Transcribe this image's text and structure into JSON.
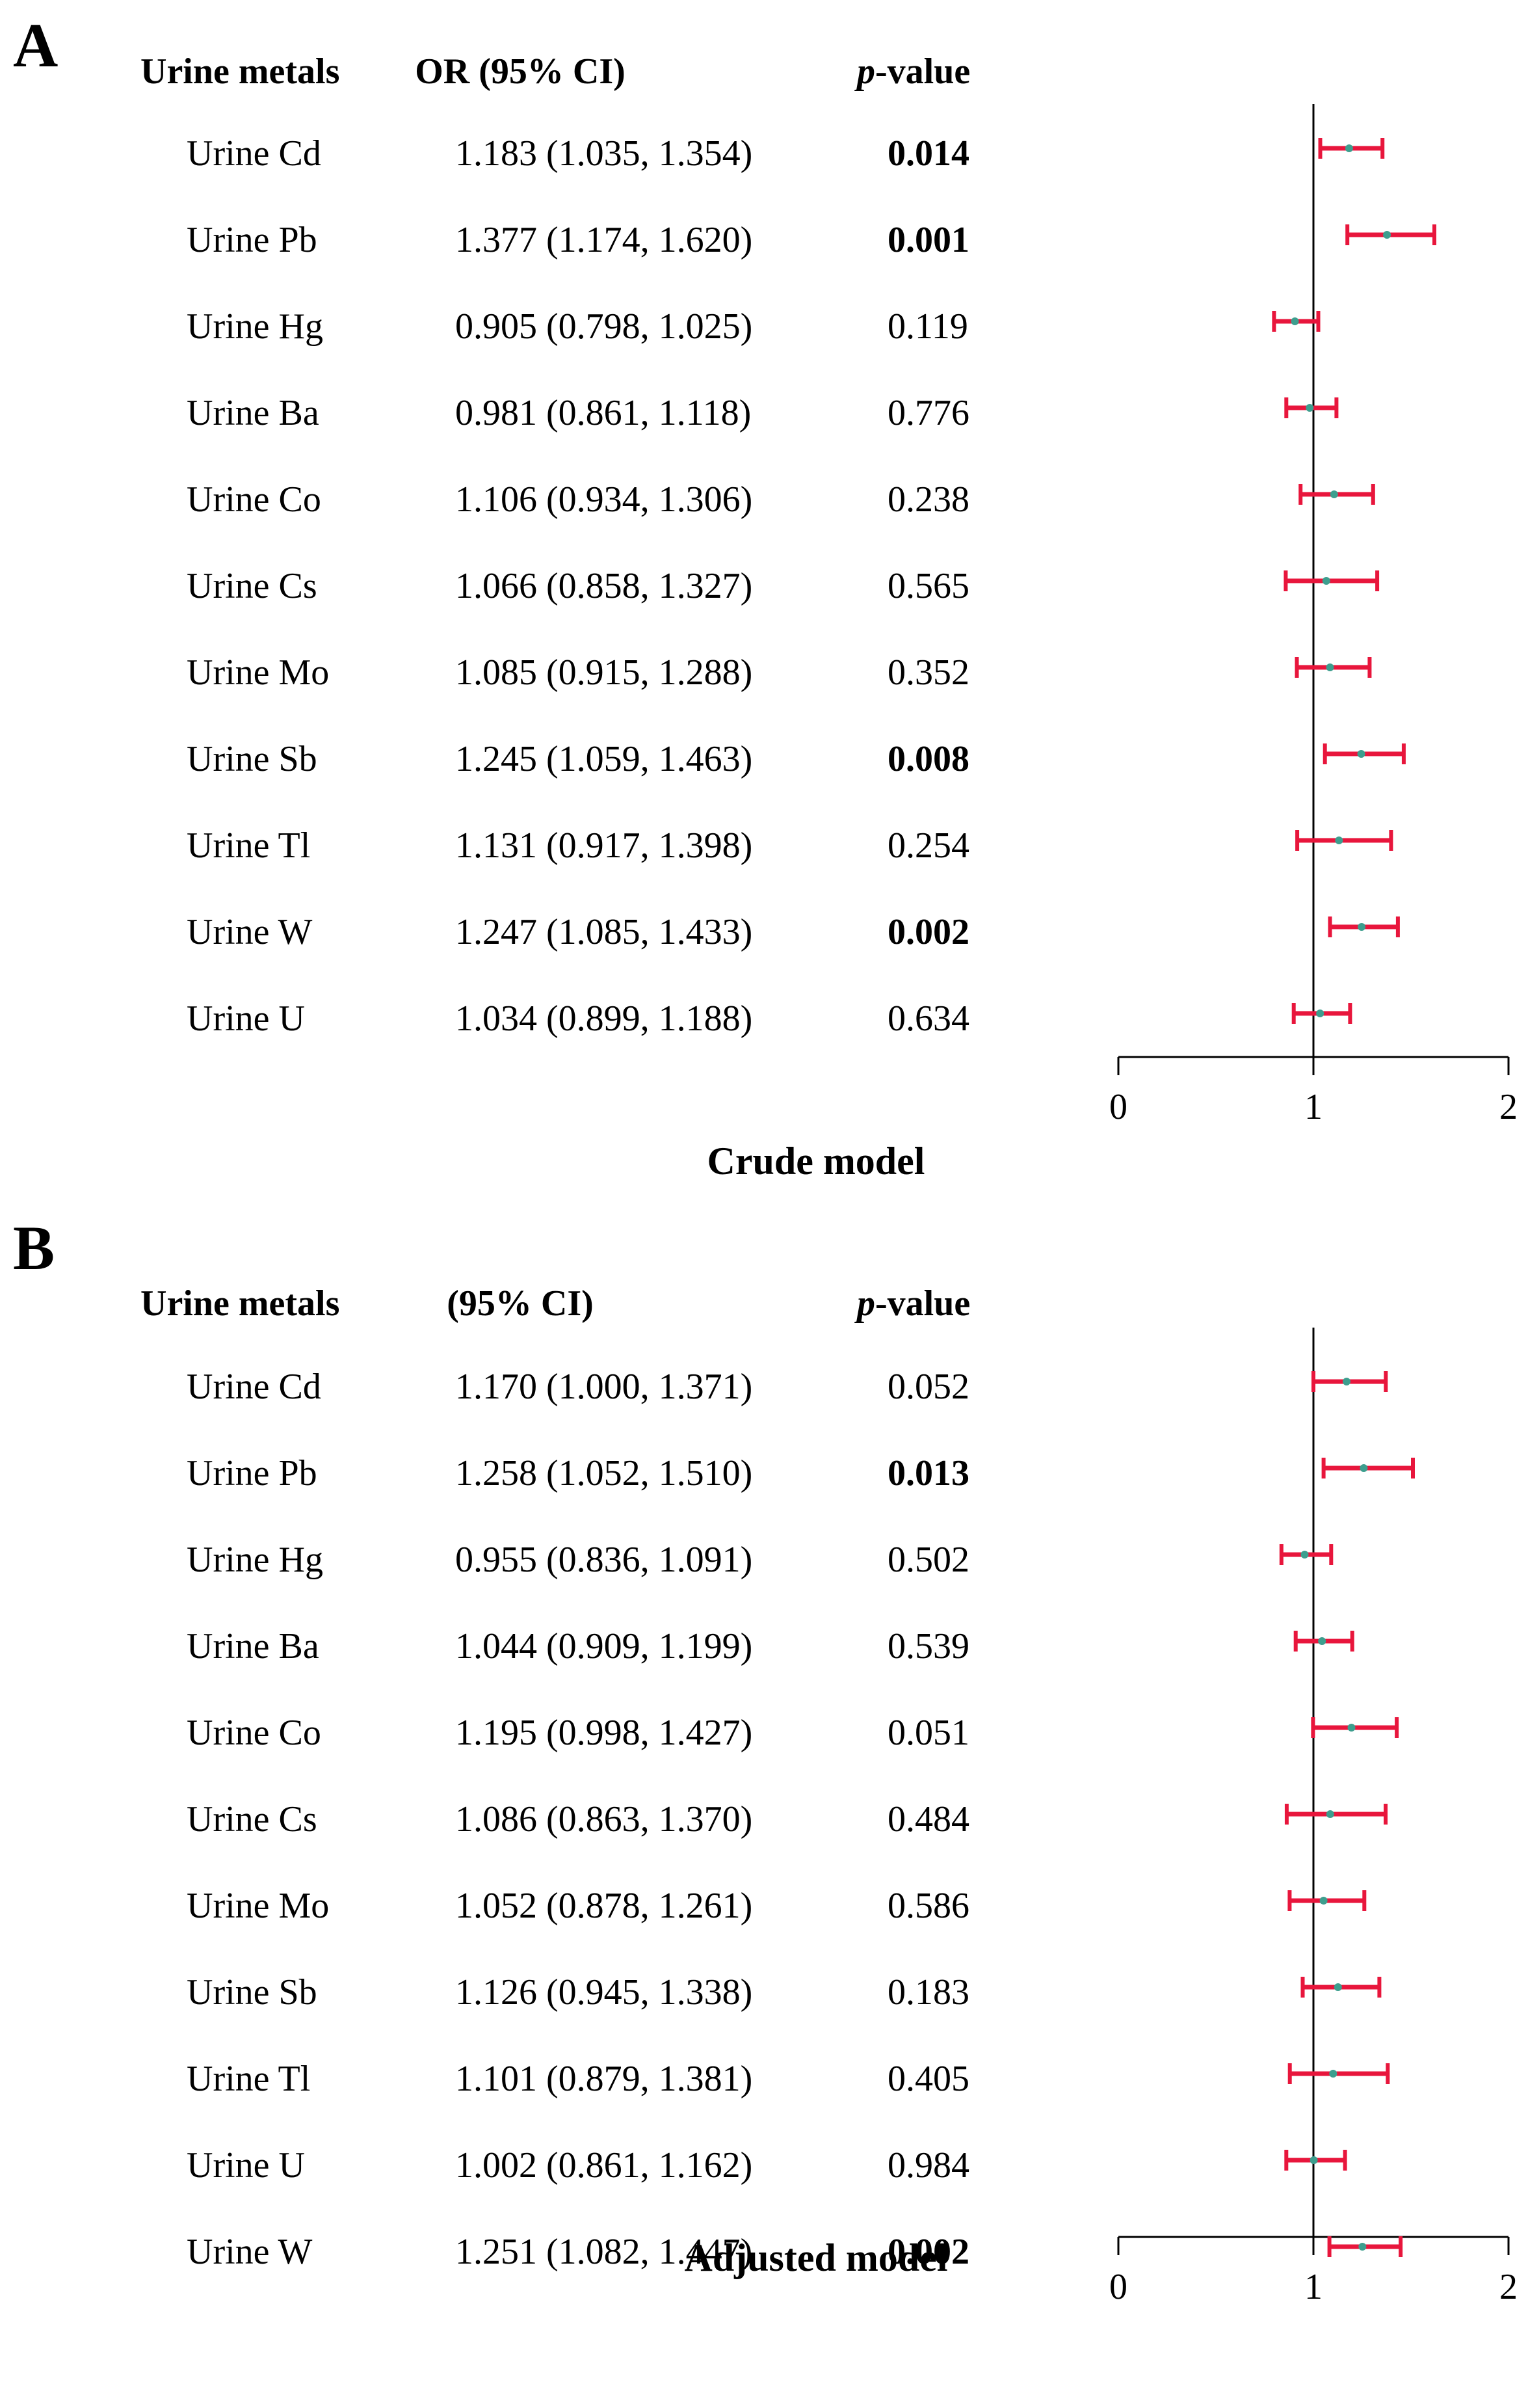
{
  "chart_data": [
    {
      "type": "forest",
      "panel": "A",
      "title": "Crude model",
      "headers": {
        "metal": "Urine metals",
        "or": "OR (95% CI)",
        "p_prefix": "p",
        "p_suffix": "-value"
      },
      "reference_line": 1,
      "xlim": [
        0,
        2
      ],
      "xticks": [
        "0",
        "1",
        "2"
      ],
      "rows": [
        {
          "metal": "Urine Cd",
          "or_text": "1.183 (1.035, 1.354)",
          "or": 1.183,
          "lower": 1.035,
          "upper": 1.354,
          "p": "0.014",
          "sig": true
        },
        {
          "metal": "Urine Pb",
          "or_text": "1.377 (1.174, 1.620)",
          "or": 1.377,
          "lower": 1.174,
          "upper": 1.62,
          "p": "0.001",
          "sig": true
        },
        {
          "metal": "Urine Hg",
          "or_text": "0.905 (0.798, 1.025)",
          "or": 0.905,
          "lower": 0.798,
          "upper": 1.025,
          "p": "0.119",
          "sig": false
        },
        {
          "metal": "Urine Ba",
          "or_text": "0.981 (0.861, 1.118)",
          "or": 0.981,
          "lower": 0.861,
          "upper": 1.118,
          "p": "0.776",
          "sig": false
        },
        {
          "metal": "Urine Co",
          "or_text": "1.106 (0.934, 1.306)",
          "or": 1.106,
          "lower": 0.934,
          "upper": 1.306,
          "p": "0.238",
          "sig": false
        },
        {
          "metal": "Urine Cs",
          "or_text": "1.066 (0.858, 1.327)",
          "or": 1.066,
          "lower": 0.858,
          "upper": 1.327,
          "p": "0.565",
          "sig": false
        },
        {
          "metal": "Urine Mo",
          "or_text": "1.085 (0.915, 1.288)",
          "or": 1.085,
          "lower": 0.915,
          "upper": 1.288,
          "p": "0.352",
          "sig": false
        },
        {
          "metal": "Urine Sb",
          "or_text": "1.245 (1.059, 1.463)",
          "or": 1.245,
          "lower": 1.059,
          "upper": 1.463,
          "p": "0.008",
          "sig": true
        },
        {
          "metal": "Urine Tl",
          "or_text": "1.131 (0.917, 1.398)",
          "or": 1.131,
          "lower": 0.917,
          "upper": 1.398,
          "p": "0.254",
          "sig": false
        },
        {
          "metal": "Urine W",
          "or_text": "1.247 (1.085, 1.433)",
          "or": 1.247,
          "lower": 1.085,
          "upper": 1.433,
          "p": "0.002",
          "sig": true
        },
        {
          "metal": "Urine U",
          "or_text": "1.034 (0.899, 1.188)",
          "or": 1.034,
          "lower": 0.899,
          "upper": 1.188,
          "p": "0.634",
          "sig": false
        }
      ]
    },
    {
      "type": "forest",
      "panel": "B",
      "title": "Adjusted model",
      "headers": {
        "metal": "Urine metals",
        "or": "(95% CI)",
        "p_prefix": "p",
        "p_suffix": "-value"
      },
      "reference_line": 1,
      "xlim": [
        0,
        2
      ],
      "xticks": [
        "0",
        "1",
        "2"
      ],
      "rows": [
        {
          "metal": "Urine Cd",
          "or_text": "1.170 (1.000, 1.371)",
          "or": 1.17,
          "lower": 1.0,
          "upper": 1.371,
          "p": "0.052",
          "sig": false
        },
        {
          "metal": "Urine Pb",
          "or_text": "1.258 (1.052, 1.510)",
          "or": 1.258,
          "lower": 1.052,
          "upper": 1.51,
          "p": "0.013",
          "sig": true
        },
        {
          "metal": "Urine Hg",
          "or_text": "0.955 (0.836, 1.091)",
          "or": 0.955,
          "lower": 0.836,
          "upper": 1.091,
          "p": "0.502",
          "sig": false
        },
        {
          "metal": "Urine Ba",
          "or_text": "1.044 (0.909, 1.199)",
          "or": 1.044,
          "lower": 0.909,
          "upper": 1.199,
          "p": "0.539",
          "sig": false
        },
        {
          "metal": "Urine Co",
          "or_text": "1.195 (0.998, 1.427)",
          "or": 1.195,
          "lower": 0.998,
          "upper": 1.427,
          "p": "0.051",
          "sig": false
        },
        {
          "metal": "Urine Cs",
          "or_text": "1.086 (0.863, 1.370)",
          "or": 1.086,
          "lower": 0.863,
          "upper": 1.37,
          "p": "0.484",
          "sig": false
        },
        {
          "metal": "Urine Mo",
          "or_text": "1.052 (0.878, 1.261)",
          "or": 1.052,
          "lower": 0.878,
          "upper": 1.261,
          "p": "0.586",
          "sig": false
        },
        {
          "metal": "Urine Sb",
          "or_text": "1.126 (0.945, 1.338)",
          "or": 1.126,
          "lower": 0.945,
          "upper": 1.338,
          "p": "0.183",
          "sig": false
        },
        {
          "metal": "Urine Tl",
          "or_text": "1.101 (0.879, 1.381)",
          "or": 1.101,
          "lower": 0.879,
          "upper": 1.381,
          "p": "0.405",
          "sig": false
        },
        {
          "metal": "Urine U",
          "or_text": "1.002 (0.861, 1.162)",
          "or": 1.002,
          "lower": 0.861,
          "upper": 1.162,
          "p": "0.984",
          "sig": false
        },
        {
          "metal": "Urine W",
          "or_text": "1.251 (1.082, 1.447)",
          "or": 1.251,
          "lower": 1.082,
          "upper": 1.447,
          "p": "0.002",
          "sig": true
        }
      ]
    }
  ],
  "colors": {
    "ci": "#e8163c",
    "point": "#3d9e8e",
    "axis": "#000000"
  }
}
